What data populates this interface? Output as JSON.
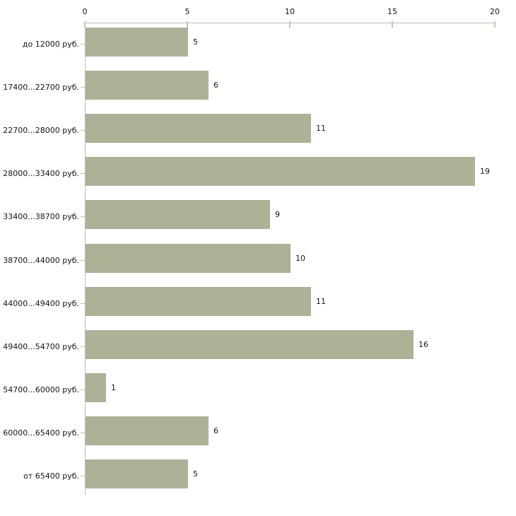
{
  "chart_data": {
    "type": "bar",
    "orientation": "horizontal",
    "title": "",
    "xlabel": "",
    "ylabel": "",
    "categories": [
      "до 12000 руб.",
      "17400...22700 руб.",
      "22700...28000 руб.",
      "28000...33400 руб.",
      "33400...38700 руб.",
      "38700...44000 руб.",
      "44000...49400 руб.",
      "49400...54700 руб.",
      "54700...60000 руб.",
      "60000...65400 руб.",
      "от 65400 руб."
    ],
    "values": [
      5,
      6,
      11,
      19,
      9,
      10,
      11,
      16,
      1,
      6,
      5
    ],
    "value_labels_shown": true,
    "xlim": [
      0,
      20
    ],
    "x_ticks": [
      0,
      5,
      10,
      15,
      20
    ],
    "x_axis_position": "top",
    "grid": false,
    "legend": "none",
    "colors": {
      "bar": "#abb296",
      "axis_line": "#bcbcb8",
      "tick_mark": "#c6c69a",
      "text": "#141414",
      "background": "#ffffff"
    }
  }
}
